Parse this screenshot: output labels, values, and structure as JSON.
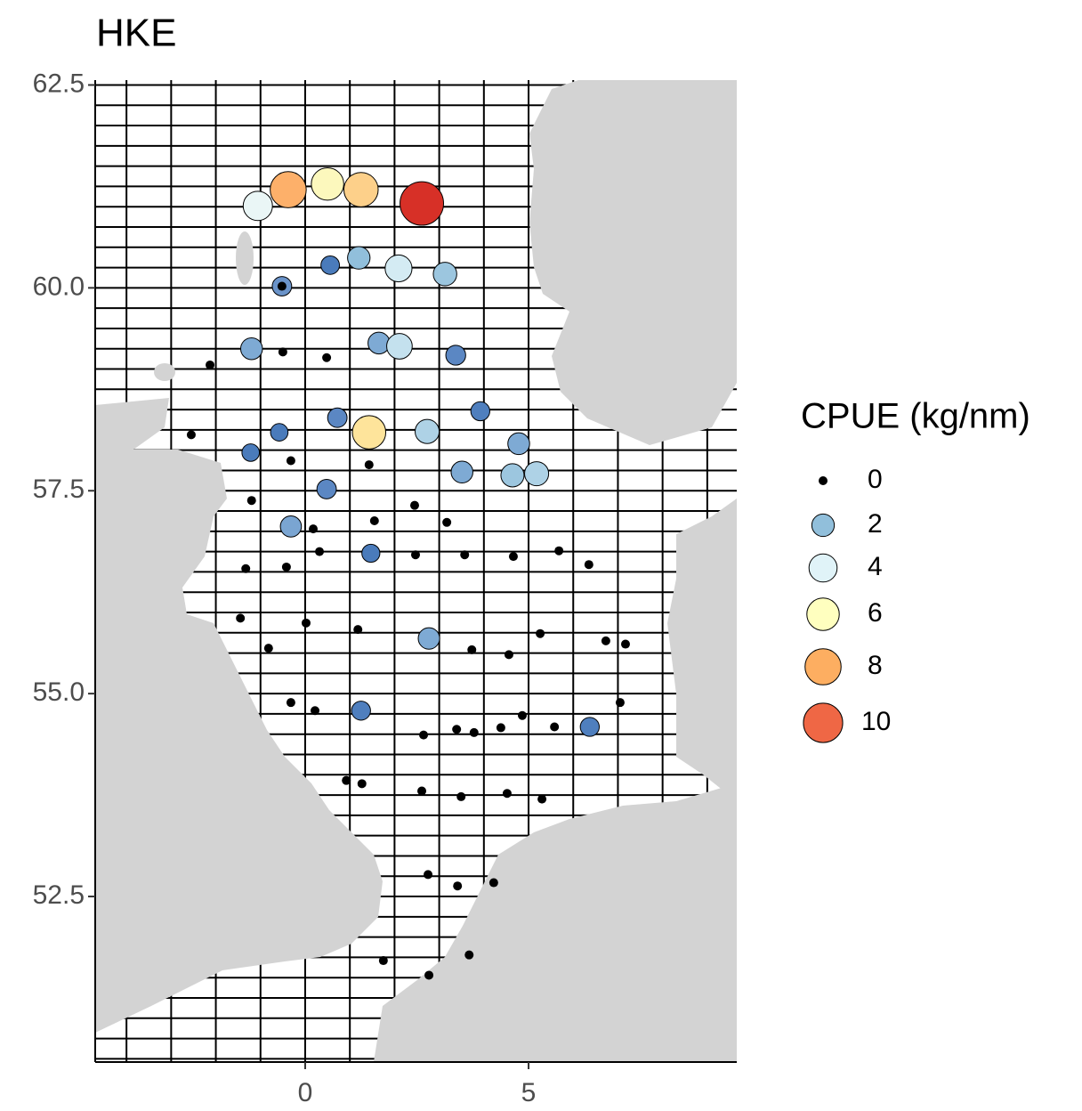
{
  "chart_data": {
    "type": "bubble",
    "title": "HKE",
    "xlim": [
      -4.7,
      9.66
    ],
    "ylim": [
      50.46,
      62.56
    ],
    "xticks": [
      0,
      5
    ],
    "yticks": [
      {
        "value": 52.5,
        "label": "52.5"
      },
      {
        "value": 55,
        "label": "55.0"
      },
      57.5,
      {
        "value": 60,
        "label": "60.0"
      },
      62.5
    ],
    "x": [
      -1.06,
      -0.38,
      0.5,
      1.25,
      2.61,
      -0.52,
      -0.52,
      0.56,
      1.2,
      2.09,
      3.13,
      -1.2,
      -0.5,
      0.48,
      1.65,
      2.11,
      3.37,
      -2.13,
      0.72,
      1.43,
      2.73,
      3.92,
      4.78,
      -0.58,
      -2.55,
      -1.22,
      -0.32,
      1.43,
      3.51,
      4.64,
      5.18,
      0.48,
      -1.2,
      2.45,
      1.55,
      3.17,
      -0.32,
      0.18,
      0.32,
      1.47,
      2.47,
      3.57,
      4.66,
      5.68,
      6.35,
      -1.33,
      -0.42,
      -1.45,
      0.02,
      1.18,
      -0.82,
      2.77,
      3.73,
      4.56,
      5.26,
      6.73,
      7.17,
      -0.32,
      0.22,
      1.25,
      4.86,
      5.58,
      6.37,
      7.05,
      3.39,
      3.78,
      4.38,
      2.65,
      0.92,
      1.27,
      2.61,
      3.49,
      4.52,
      5.3,
      2.75,
      3.41,
      4.22,
      1.75,
      3.67,
      2.77
    ],
    "y": [
      61.01,
      61.21,
      61.28,
      61.21,
      61.04,
      60.02,
      60.02,
      60.28,
      60.37,
      60.24,
      60.17,
      59.25,
      59.21,
      59.14,
      59.32,
      59.28,
      59.17,
      59.05,
      58.4,
      58.22,
      58.23,
      58.48,
      58.08,
      58.22,
      58.19,
      57.97,
      57.87,
      57.82,
      57.73,
      57.69,
      57.71,
      57.52,
      57.38,
      57.32,
      57.13,
      57.11,
      57.06,
      57.03,
      56.75,
      56.73,
      56.71,
      56.71,
      56.69,
      56.76,
      56.59,
      56.54,
      56.56,
      55.93,
      55.87,
      55.79,
      55.56,
      55.68,
      55.54,
      55.48,
      55.74,
      55.65,
      55.61,
      54.89,
      54.79,
      54.79,
      54.73,
      54.59,
      54.59,
      54.89,
      54.56,
      54.52,
      54.58,
      54.49,
      53.93,
      53.89,
      53.8,
      53.73,
      53.77,
      53.7,
      52.77,
      52.63,
      52.67,
      51.71,
      51.78,
      51.53
    ],
    "sizes": [
      4.5,
      8,
      6,
      7,
      13,
      1.2,
      0,
      1,
      2,
      3.5,
      2.3,
      1.8,
      0,
      0,
      1.8,
      3,
      1.3,
      0,
      1.2,
      6.5,
      2.5,
      1.1,
      1.8,
      0.8,
      0,
      0.8,
      0,
      0,
      1.8,
      2.2,
      2.5,
      1.2,
      0,
      0,
      0,
      0,
      1.6,
      0,
      0,
      0.9,
      0,
      0,
      0,
      0,
      0,
      0,
      0,
      0,
      0,
      0,
      0,
      1.7,
      0,
      0,
      0,
      0,
      0,
      0,
      0,
      1.1,
      0,
      0,
      1.1,
      0,
      0,
      0,
      0,
      0,
      0,
      0,
      0,
      0,
      0,
      0,
      0,
      0,
      0,
      0,
      0,
      0
    ],
    "colors": [
      "#eaf6f6",
      "#fdb06a",
      "#fcf8bd",
      "#fdd08a",
      "#d73027",
      "#6a93c9",
      "#000000",
      "#4a7bbb",
      "#91bfdb",
      "#d4ebf3",
      "#9cc6df",
      "#7eaad4",
      "#000000",
      "#000000",
      "#7eaad4",
      "#c4e1ee",
      "#5b87c3",
      "#000000",
      "#5b87c3",
      "#fee49b",
      "#aed2e6",
      "#4f7fbe",
      "#7eaad4",
      "#4a7bbb",
      "#000000",
      "#4a7bbb",
      "#000000",
      "#000000",
      "#7eaad4",
      "#9cc6df",
      "#aed2e6",
      "#5b87c3",
      "#000000",
      "#000000",
      "#000000",
      "#000000",
      "#7aa5d2",
      "#000000",
      "#000000",
      "#4a7bbb",
      "#000000",
      "#000000",
      "#000000",
      "#000000",
      "#000000",
      "#000000",
      "#000000",
      "#000000",
      "#000000",
      "#000000",
      "#000000",
      "#7eaad4",
      "#000000",
      "#000000",
      "#000000",
      "#000000",
      "#000000",
      "#000000",
      "#000000",
      "#4f7fbe",
      "#000000",
      "#000000",
      "#4f7fbe",
      "#000000",
      "#000000",
      "#000000",
      "#000000",
      "#000000",
      "#000000",
      "#000000",
      "#000000",
      "#000000",
      "#000000",
      "#000000",
      "#000000",
      "#000000",
      "#000000",
      "#000000",
      "#000000",
      "#000000"
    ],
    "legend_title": "CPUE (kg/nm)",
    "legend": {
      "values": [
        0,
        2,
        4,
        6,
        8,
        10
      ],
      "colors": [
        "#000000",
        "#91bfdb",
        "#e0f3f8",
        "#ffffbf",
        "#fdae61",
        "#ef6745"
      ]
    }
  }
}
